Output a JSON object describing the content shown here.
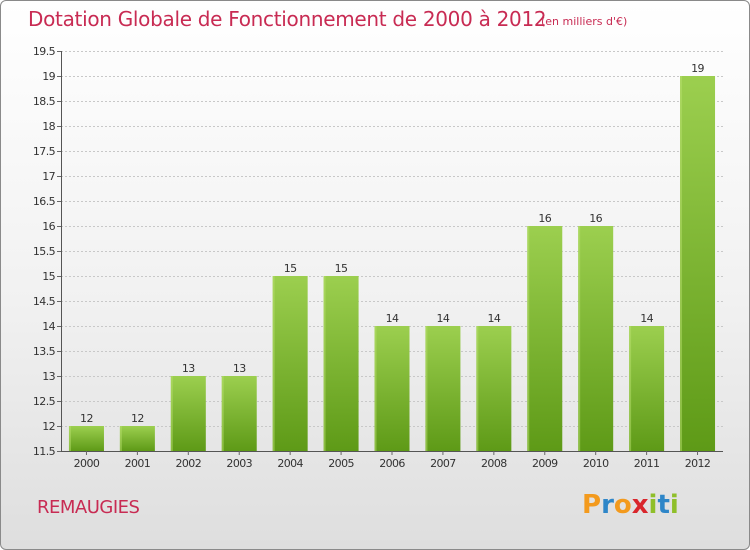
{
  "chart_data": {
    "type": "bar",
    "title": "Dotation Globale de Fonctionnement de 2000 à 2012",
    "subtitle": "(en milliers d'€)",
    "categories": [
      "2000",
      "2001",
      "2002",
      "2003",
      "2004",
      "2005",
      "2006",
      "2007",
      "2008",
      "2009",
      "2010",
      "2011",
      "2012"
    ],
    "values": [
      12,
      12,
      13,
      13,
      15,
      15,
      14,
      14,
      14,
      16,
      16,
      14,
      19
    ],
    "data_labels": [
      "12",
      "12",
      "13",
      "13",
      "15",
      "15",
      "14",
      "14",
      "14",
      "16",
      "16",
      "14",
      "19"
    ],
    "ylim": [
      11.5,
      19.5
    ],
    "yticks": [
      11.5,
      12,
      12.5,
      13,
      13.5,
      14,
      14.5,
      15,
      15.5,
      16,
      16.5,
      17,
      17.5,
      18,
      18.5,
      19,
      19.5
    ],
    "ytick_labels": [
      "11.5",
      "12",
      "12.5",
      "13",
      "13.5",
      "14",
      "14.5",
      "15",
      "15.5",
      "16",
      "16.5",
      "17",
      "17.5",
      "18",
      "18.5",
      "19",
      "19.5"
    ],
    "grid": true,
    "bar_color_top": "#9ccf4f",
    "bar_color_bottom": "#5e9a17",
    "title_color": "#c82b53"
  },
  "commune_name": "REMAUGIES",
  "logo": {
    "letters": [
      "P",
      "r",
      "o",
      "x",
      "i",
      "t",
      "i"
    ],
    "colors": [
      "#f39a1d",
      "#2e86c8",
      "#f39a1d",
      "#d9262c",
      "#8fbf2a",
      "#2e86c8",
      "#8fbf2a"
    ]
  }
}
